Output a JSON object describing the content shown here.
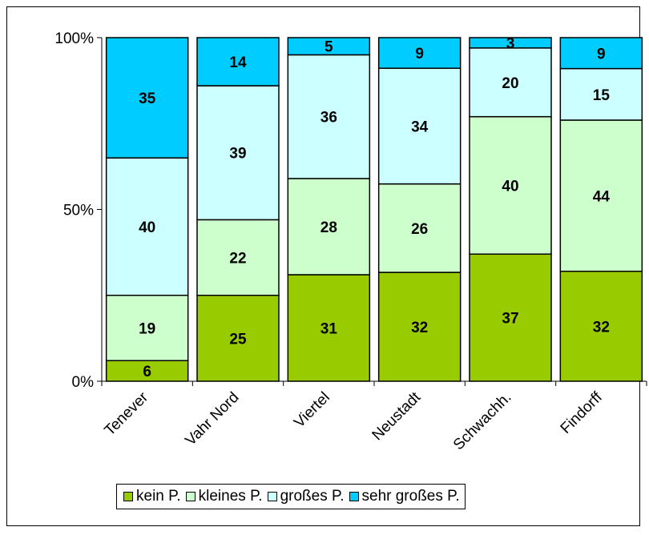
{
  "chart_data": {
    "type": "bar",
    "stacked": "percent",
    "categories": [
      "Tenever",
      "Vahr Nord",
      "Viertel",
      "Neustadt",
      "Schwachh.",
      "Findorff"
    ],
    "series": [
      {
        "name": "kein P.",
        "color": "#99cc00",
        "values": [
          6,
          25,
          31,
          32,
          37,
          32
        ]
      },
      {
        "name": "kleines P.",
        "color": "#ccffcc",
        "values": [
          19,
          22,
          28,
          26,
          40,
          44
        ]
      },
      {
        "name": "großes P.",
        "color": "#ccffff",
        "values": [
          40,
          39,
          36,
          34,
          20,
          15
        ]
      },
      {
        "name": "sehr großes P.",
        "color": "#00ccff",
        "values": [
          35,
          14,
          5,
          9,
          3,
          9
        ]
      }
    ],
    "yticks": [
      "0%",
      "50%",
      "100%"
    ],
    "ylim": [
      0,
      100
    ],
    "grid": false,
    "legend_position": "bottom"
  }
}
